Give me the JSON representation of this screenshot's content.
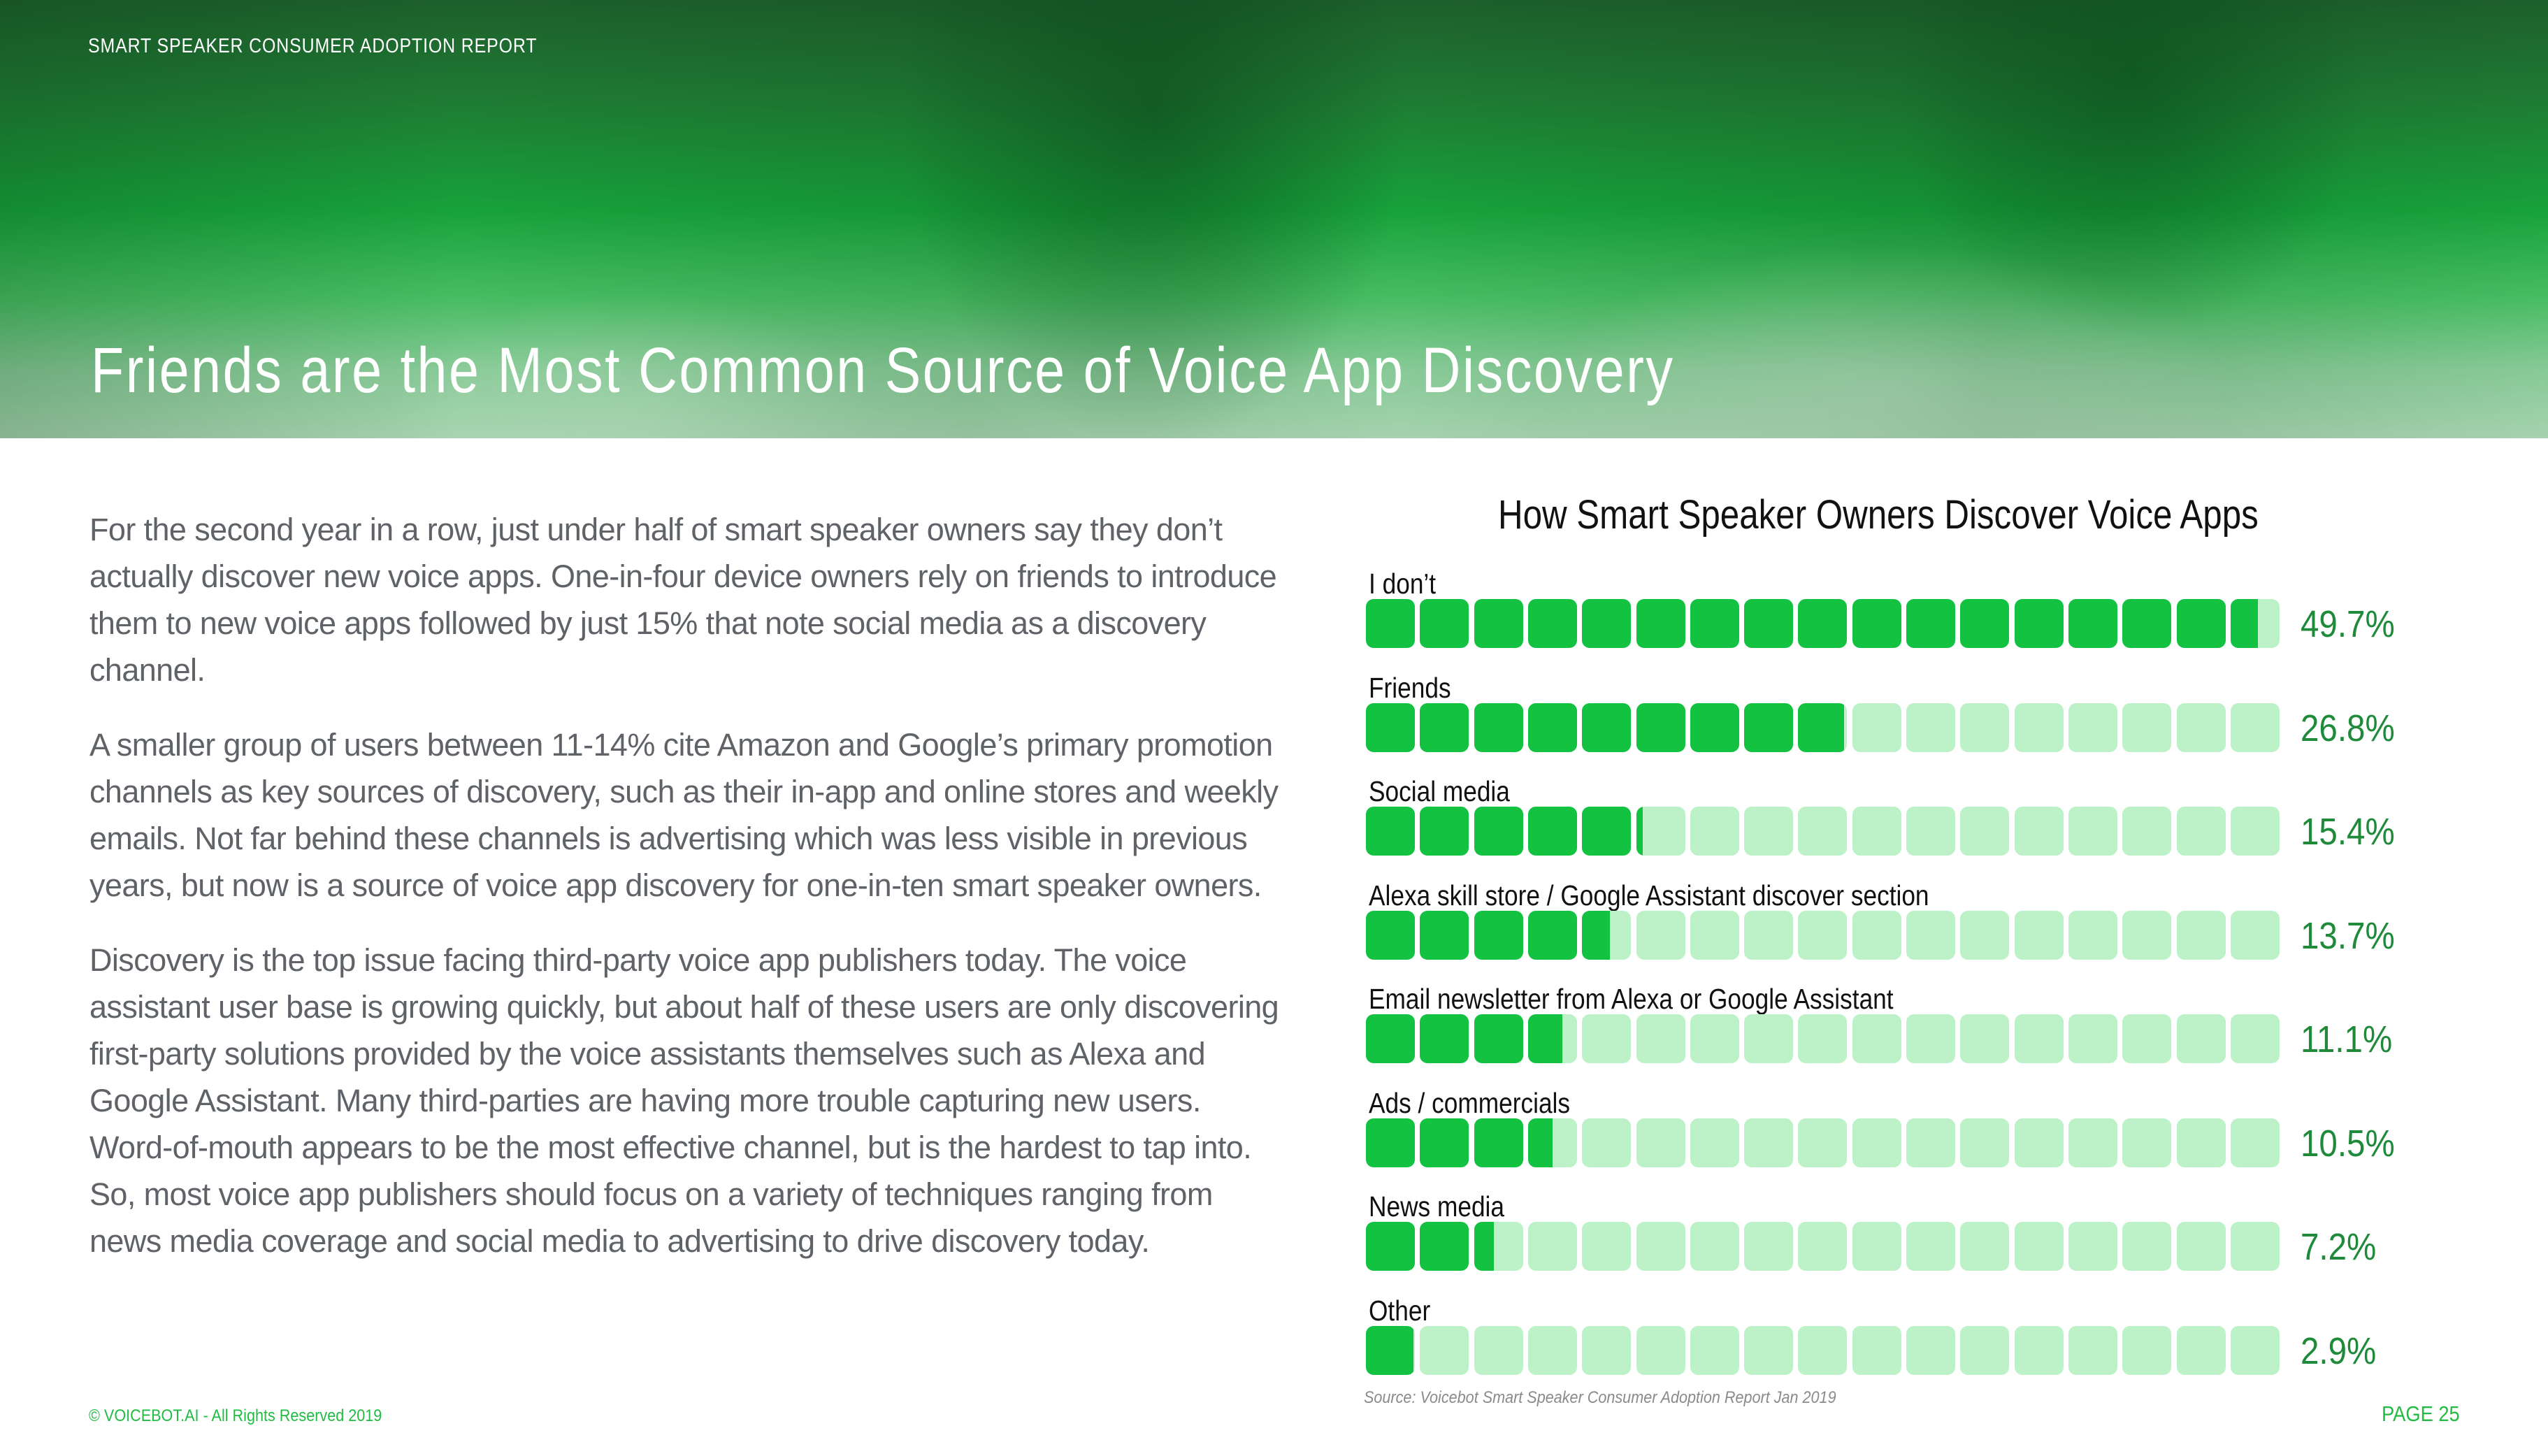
{
  "header": {
    "report_label": "SMART SPEAKER CONSUMER ADOPTION REPORT",
    "title": "Friends are the Most Common Source of Voice App Discovery"
  },
  "body": {
    "paragraphs": [
      "For the second year in a row, just under half of smart speaker owners say they don’t actually discover new voice apps. One-in-four device owners rely on friends to introduce them to new voice apps followed by just 15% that note social media as a discovery channel.",
      "A smaller group of users between 11-14% cite Amazon and Google’s primary promotion channels as key sources of discovery, such as their in-app and online stores and weekly emails. Not far behind these channels is advertising which was less visible in previous years, but now is a source of voice app discovery for one-in-ten smart speaker owners.",
      "Discovery is the top issue facing third-party voice app publishers today. The voice assistant user base is growing quickly, but about half of these users are only discovering first-party solutions provided by the voice assistants themselves such as Alexa and Google Assistant. Many third-parties are having more trouble capturing new users. Word-of-mouth appears to be the most effective channel, but is the hardest to tap into. So, most voice app publishers should focus on a variety of techniques ranging from news media coverage and social media to advertising to drive discovery today."
    ]
  },
  "chart": {
    "title": "How Smart Speaker Owners Discover Voice Apps",
    "source": "Source: Voicebot Smart Speaker Consumer Adoption Report Jan 2019",
    "rows": [
      {
        "label": "I don’t",
        "value": 49.7,
        "display": "49.7%"
      },
      {
        "label": "Friends",
        "value": 26.8,
        "display": "26.8%"
      },
      {
        "label": "Social media",
        "value": 15.4,
        "display": "15.4%"
      },
      {
        "label": "Alexa skill store / Google Assistant discover section",
        "value": 13.7,
        "display": "13.7%"
      },
      {
        "label": "Email newsletter from Alexa or Google Assistant",
        "value": 11.1,
        "display": "11.1%"
      },
      {
        "label": "Ads / commercials",
        "value": 10.5,
        "display": "10.5%"
      },
      {
        "label": "News media",
        "value": 7.2,
        "display": "7.2%"
      },
      {
        "label": "Other",
        "value": 2.9,
        "display": "2.9%"
      }
    ],
    "blocks_per_bar": 17,
    "percent_per_block": 3,
    "colors": {
      "filled": "#14c241",
      "empty": "#bdf2c9",
      "value_text": "#1e8a3a"
    }
  },
  "chart_data": {
    "type": "bar",
    "orientation": "horizontal",
    "title": "How Smart Speaker Owners Discover Voice Apps",
    "categories": [
      "I don’t",
      "Friends",
      "Social media",
      "Alexa skill store / Google Assistant discover section",
      "Email newsletter from Alexa or Google Assistant",
      "Ads / commercials",
      "News media",
      "Other"
    ],
    "values": [
      49.7,
      26.8,
      15.4,
      13.7,
      11.1,
      10.5,
      7.2,
      2.9
    ],
    "unit": "%",
    "xlabel": "",
    "ylabel": "",
    "grid": false,
    "legend": "none",
    "style": "pictograph blocks (17 blocks per bar, ~3% each)",
    "annotation": "Source: Voicebot Smart Speaker Consumer Adoption Report Jan 2019"
  },
  "footer": {
    "copyright": "© VOICEBOT.AI - All Rights Reserved 2019",
    "page": "PAGE 25"
  }
}
